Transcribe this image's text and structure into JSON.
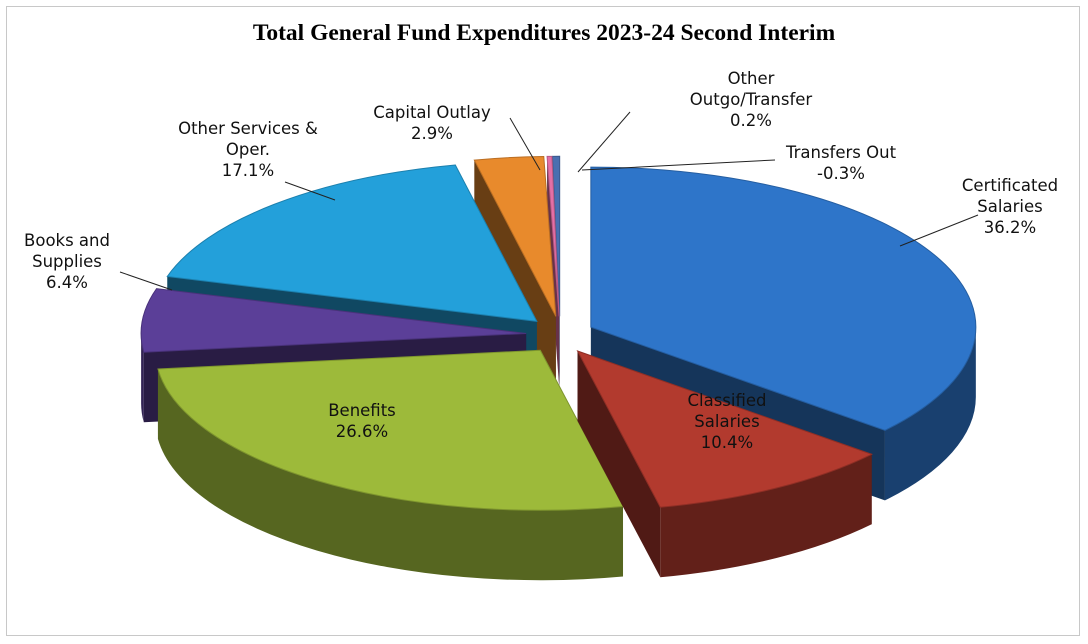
{
  "chart_data": {
    "type": "pie",
    "style": "3d-exploded",
    "title": "Total General Fund Expenditures 2023-24 Second Interim",
    "slices": [
      {
        "name": "Certificated Salaries",
        "label_lines": [
          "Certificated",
          "Salaries"
        ],
        "value": 36.2,
        "pct_text": "36.2%",
        "color": "#2E75C9"
      },
      {
        "name": "Classified Salaries",
        "label_lines": [
          "Classified",
          "Salaries"
        ],
        "value": 10.4,
        "pct_text": "10.4%",
        "color": "#B23A2E"
      },
      {
        "name": "Benefits",
        "label_lines": [
          "Benefits"
        ],
        "value": 26.6,
        "pct_text": "26.6%",
        "color": "#9DBA3A"
      },
      {
        "name": "Books and Supplies",
        "label_lines": [
          "Books and",
          "Supplies"
        ],
        "value": 6.4,
        "pct_text": "6.4%",
        "color": "#5B3F98"
      },
      {
        "name": "Other Services & Oper.",
        "label_lines": [
          "Other Services &",
          "Oper."
        ],
        "value": 17.1,
        "pct_text": "17.1%",
        "color": "#23A0DA"
      },
      {
        "name": "Capital Outlay",
        "label_lines": [
          "Capital Outlay"
        ],
        "value": 2.9,
        "pct_text": "2.9%",
        "color": "#E88A2C"
      },
      {
        "name": "Other Outgo/Transfer",
        "label_lines": [
          "Other",
          "Outgo/Transfer"
        ],
        "value": 0.2,
        "pct_text": "0.2%",
        "color": "#E56FA5"
      },
      {
        "name": "Transfers Out",
        "label_lines": [
          "Transfers Out"
        ],
        "value": -0.3,
        "pct_text": "-0.3%",
        "color": "#4A6FB0"
      }
    ],
    "legend": "none"
  }
}
